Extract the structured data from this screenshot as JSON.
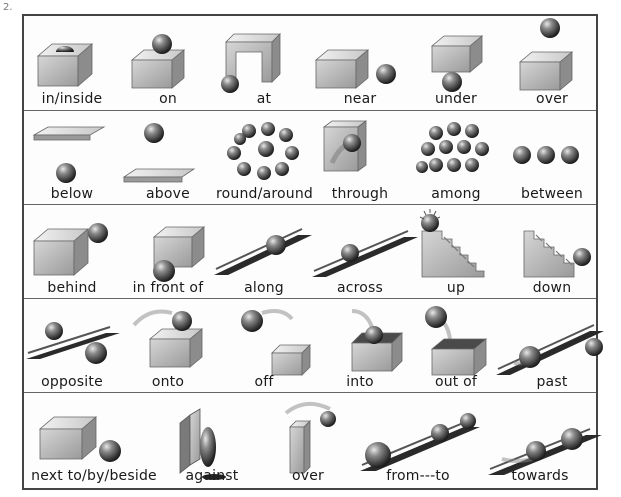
{
  "page_mark": "2.",
  "rows": [
    {
      "items": [
        {
          "label": "in/inside",
          "icon": "ball-in-box-icon"
        },
        {
          "label": "on",
          "icon": "ball-on-box-icon"
        },
        {
          "label": "at",
          "icon": "ball-at-arch-icon"
        },
        {
          "label": "near",
          "icon": "ball-near-box-icon"
        },
        {
          "label": "under",
          "icon": "ball-under-box-icon"
        },
        {
          "label": "over",
          "icon": "ball-over-box-icon"
        }
      ]
    },
    {
      "items": [
        {
          "label": "below",
          "icon": "ball-below-plate-icon"
        },
        {
          "label": "above",
          "icon": "ball-above-plate-icon"
        },
        {
          "label": "round/around",
          "icon": "balls-in-circle-icon"
        },
        {
          "label": "through",
          "icon": "ball-through-box-icon"
        },
        {
          "label": "among",
          "icon": "ball-among-balls-icon"
        },
        {
          "label": "between",
          "icon": "ball-between-balls-icon"
        }
      ]
    },
    {
      "items": [
        {
          "label": "behind",
          "icon": "ball-behind-box-icon"
        },
        {
          "label": "in front of",
          "icon": "ball-in-front-of-box-icon"
        },
        {
          "label": "along",
          "icon": "ball-along-track-icon"
        },
        {
          "label": "across",
          "icon": "ball-across-track-icon"
        },
        {
          "label": "up",
          "icon": "ball-up-stairs-icon"
        },
        {
          "label": "down",
          "icon": "ball-down-stairs-icon"
        }
      ]
    },
    {
      "items": [
        {
          "label": "opposite",
          "icon": "balls-opposite-track-icon"
        },
        {
          "label": "onto",
          "icon": "ball-onto-box-icon"
        },
        {
          "label": "off",
          "icon": "ball-off-box-icon"
        },
        {
          "label": "into",
          "icon": "ball-into-box-icon"
        },
        {
          "label": "out of",
          "icon": "ball-out-of-box-icon"
        },
        {
          "label": "past",
          "icon": "ball-past-track-icon"
        }
      ]
    },
    {
      "items": [
        {
          "label": "next to/by/beside",
          "icon": "ball-next-to-box-icon"
        },
        {
          "label": "against",
          "icon": "ball-against-wall-icon"
        },
        {
          "label": "over",
          "icon": "ball-over-wall-icon"
        },
        {
          "label": "from---to",
          "icon": "ball-from-to-track-icon"
        },
        {
          "label": "towards",
          "icon": "ball-towards-track-icon"
        }
      ]
    }
  ]
}
